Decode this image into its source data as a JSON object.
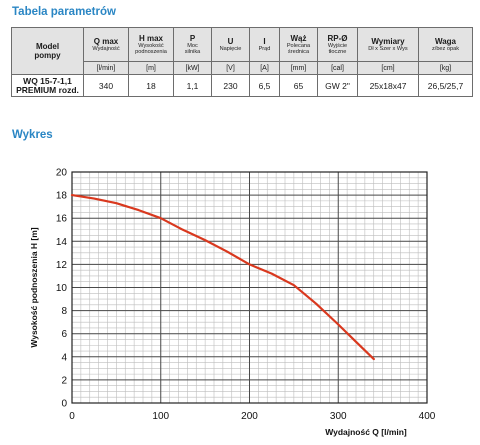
{
  "table_title": "Tabela parametrów",
  "chart_title": "Wykres",
  "params_table": {
    "model_header": [
      "Model",
      "pompy"
    ],
    "columns": [
      {
        "name": "Q max",
        "sub": [
          "Wydajność"
        ],
        "unit": "[l/min]",
        "value": "340"
      },
      {
        "name": "H max",
        "sub": [
          "Wysokość",
          "podnoszenia"
        ],
        "unit": "[m]",
        "value": "18"
      },
      {
        "name": "P",
        "sub": [
          "Moc",
          "silnika"
        ],
        "unit": "[kW]",
        "value": "1,1"
      },
      {
        "name": "U",
        "sub": [
          "Napięcie"
        ],
        "unit": "[V]",
        "value": "230"
      },
      {
        "name": "I",
        "sub": [
          "Prąd"
        ],
        "unit": "[A]",
        "value": "6,5"
      },
      {
        "name": "Wąż",
        "sub": [
          "Polecana",
          "średnica"
        ],
        "unit": "[mm]",
        "value": "65"
      },
      {
        "name": "RP-Ø",
        "sub": [
          "Wyjście",
          "tłoczne"
        ],
        "unit": "[cal]",
        "value": "GW 2\""
      },
      {
        "name": "Wymiary",
        "sub": [
          "Dł x Szer x Wys"
        ],
        "unit": "[cm]",
        "value": "25x18x47"
      },
      {
        "name": "Waga",
        "sub": [
          "z/bez opak"
        ],
        "unit": "[kg]",
        "value": "26,5/25,7"
      }
    ],
    "model_value": [
      "WQ 15-7-1,1",
      "PREMIUM rozd."
    ]
  },
  "chart_data": {
    "type": "line",
    "title": "Wykres",
    "xlabel": "Wydajność Q [l/min]",
    "ylabel": "Wysokość podnoszenia H [m]",
    "xlim": [
      0,
      400
    ],
    "ylim": [
      0,
      20
    ],
    "x_ticks": [
      0,
      100,
      200,
      300,
      400
    ],
    "y_ticks": [
      0,
      2,
      4,
      6,
      8,
      10,
      12,
      14,
      16,
      18,
      20
    ],
    "grid": true,
    "legend": "none",
    "series": [
      {
        "color": "#d9381e",
        "x": [
          0,
          25,
          50,
          75,
          100,
          125,
          150,
          175,
          200,
          225,
          250,
          275,
          300,
          320,
          340
        ],
        "y": [
          18,
          17.7,
          17.3,
          16.7,
          16,
          15,
          14.1,
          13.1,
          12,
          11.2,
          10.2,
          8.6,
          6.8,
          5.3,
          3.8
        ]
      }
    ]
  }
}
